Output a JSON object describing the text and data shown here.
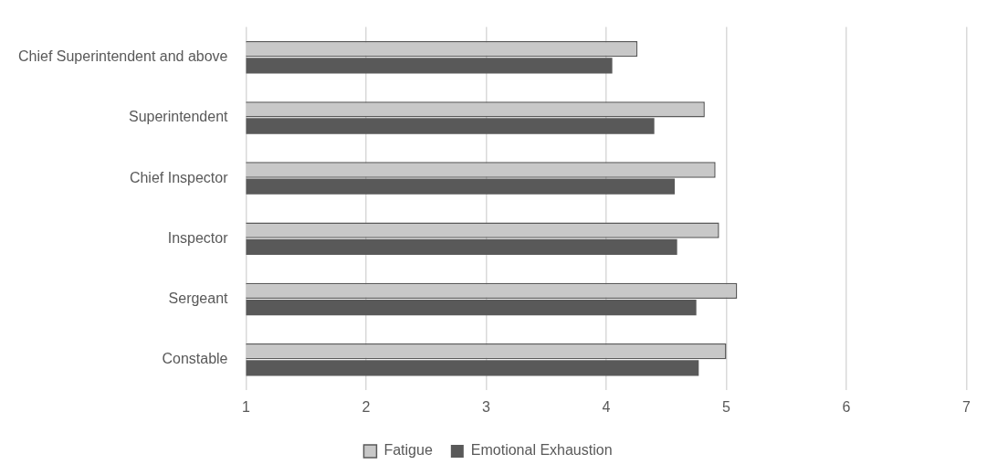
{
  "chart_data": {
    "type": "bar",
    "orientation": "horizontal",
    "categories": [
      "Chief Superintendent and above",
      "Superintendent",
      "Chief Inspector",
      "Inspector",
      "Sergeant",
      "Constable"
    ],
    "series": [
      {
        "name": "Fatigue",
        "color": "#c8c8c8",
        "values": [
          4.26,
          4.82,
          4.91,
          4.94,
          5.09,
          5.0
        ]
      },
      {
        "name": "Emotional Exhaustion",
        "color": "#595959",
        "values": [
          4.05,
          4.4,
          4.57,
          4.59,
          4.75,
          4.77
        ]
      }
    ],
    "xlim": [
      1,
      7
    ],
    "xticks": [
      1,
      2,
      3,
      4,
      5,
      6,
      7
    ],
    "grid": "x",
    "legend": "bottom"
  }
}
